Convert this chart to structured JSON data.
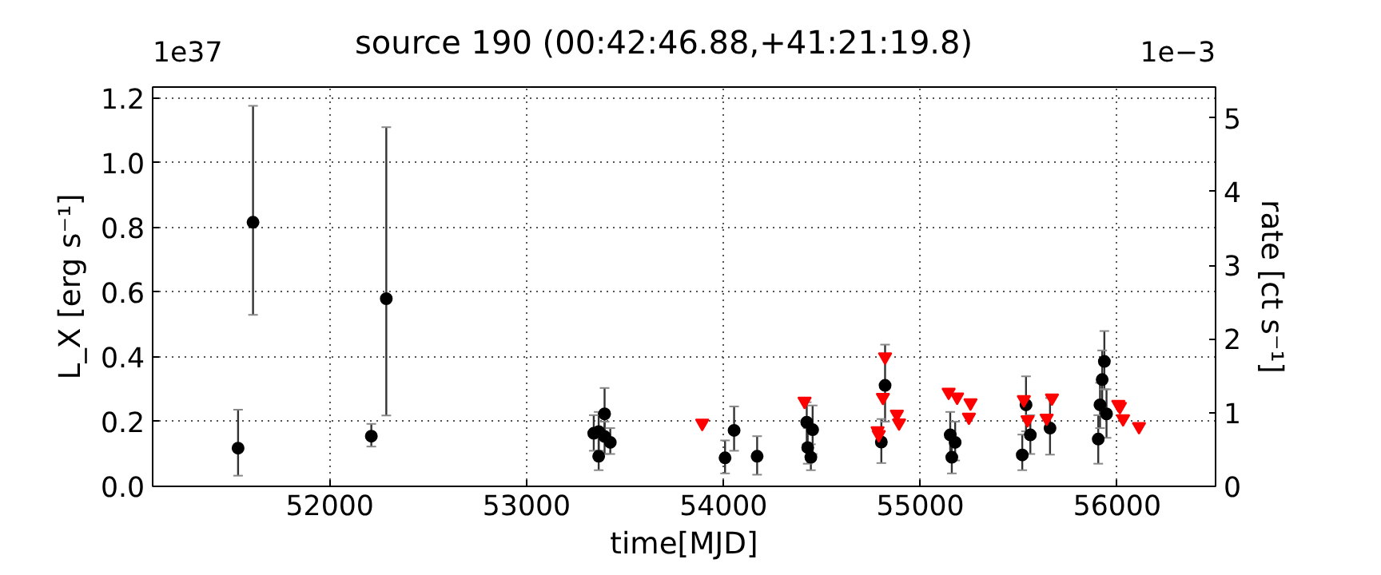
{
  "chart_data": {
    "type": "scatter",
    "title": "source 190     (00:42:46.88,+41:21:19.8)",
    "xlabel": "time[MJD]",
    "ylabel": "L_X [erg s⁻¹]",
    "y2label": "rate [ct s⁻¹]",
    "annotations": [
      "1e37",
      "1e−3"
    ],
    "xlim": [
      51100,
      56500
    ],
    "xticks": [
      52000,
      53000,
      54000,
      55000,
      56000
    ],
    "ylim": [
      0,
      1.234
    ],
    "yticks": [
      {
        "value": 0,
        "label": "0.0"
      },
      {
        "value": 0.2,
        "label": "0.2"
      },
      {
        "value": 0.4,
        "label": "0.4"
      },
      {
        "value": 0.6,
        "label": "0.6"
      },
      {
        "value": 0.8,
        "label": "0.8"
      },
      {
        "value": 1.0,
        "label": "1.0"
      },
      {
        "value": 1.2,
        "label": "1.2"
      }
    ],
    "y2lim": [
      0,
      5.42
    ],
    "y2ticks": [
      0,
      1,
      2,
      3,
      4,
      5
    ],
    "grid": true,
    "series": [
      {
        "type": "scatter",
        "marker": "circle",
        "color": "#000000",
        "x": [
          51534,
          51610,
          52211,
          52287,
          53341,
          53366,
          53366,
          53396,
          53396,
          53425,
          54008,
          54054,
          54171,
          54423,
          54428,
          54444,
          54453,
          54802,
          54821,
          55152,
          55160,
          55177,
          55518,
          55537,
          55559,
          55659,
          55904,
          55913,
          55924,
          55935,
          55946
        ],
        "values": [
          0.118,
          0.816,
          0.155,
          0.58,
          0.164,
          0.169,
          0.093,
          0.224,
          0.154,
          0.136,
          0.088,
          0.173,
          0.093,
          0.198,
          0.12,
          0.09,
          0.175,
          0.137,
          0.312,
          0.159,
          0.09,
          0.136,
          0.097,
          0.252,
          0.159,
          0.18,
          0.146,
          0.252,
          0.33,
          0.386,
          0.224
        ],
        "errors": [
          [
            0.033,
            0.237
          ],
          [
            0.53,
            1.176
          ],
          [
            0.123,
            0.193
          ],
          [
            0.219,
            1.11
          ],
          [
            0.11,
            0.22
          ],
          [
            0.11,
            0.23
          ],
          [
            0.05,
            0.15
          ],
          [
            0.15,
            0.304
          ],
          [
            0.1,
            0.2
          ],
          [
            0.1,
            0.18
          ],
          [
            0.04,
            0.142
          ],
          [
            0.11,
            0.247
          ],
          [
            0.036,
            0.155
          ],
          [
            0.13,
            0.26
          ],
          [
            0.07,
            0.18
          ],
          [
            0.05,
            0.13
          ],
          [
            0.1,
            0.25
          ],
          [
            0.072,
            0.208
          ],
          [
            0.2,
            0.438
          ],
          [
            0.09,
            0.23
          ],
          [
            0.04,
            0.15
          ],
          [
            0.08,
            0.2
          ],
          [
            0.05,
            0.16
          ],
          [
            0.17,
            0.34
          ],
          [
            0.1,
            0.22
          ],
          [
            0.098,
            0.273
          ],
          [
            0.07,
            0.22
          ],
          [
            0.18,
            0.32
          ],
          [
            0.24,
            0.42
          ],
          [
            0.3,
            0.48
          ],
          [
            0.15,
            0.3
          ]
        ]
      },
      {
        "type": "scatter",
        "marker": "triangle",
        "color": "#ff0000",
        "x": [
          53892,
          54412,
          54783,
          54789,
          54810,
          54821,
          54881,
          54892,
          55144,
          55187,
          55247,
          55255,
          55526,
          55545,
          55642,
          55669,
          56006,
          56014,
          56030,
          56111
        ],
        "values": [
          0.195,
          0.263,
          0.172,
          0.16,
          0.275,
          0.4,
          0.223,
          0.196,
          0.291,
          0.276,
          0.214,
          0.258,
          0.268,
          0.206,
          0.211,
          0.273,
          0.253,
          0.247,
          0.209,
          0.185
        ]
      }
    ]
  }
}
